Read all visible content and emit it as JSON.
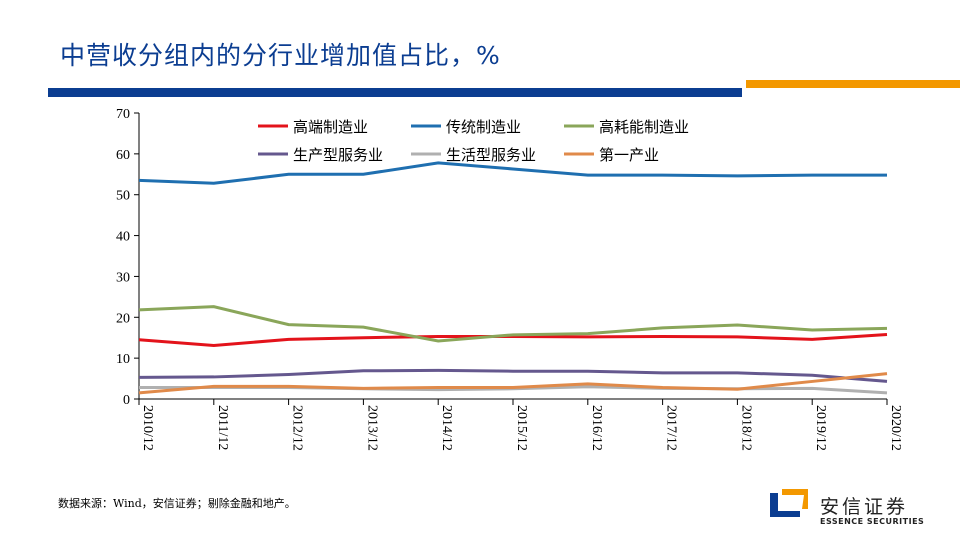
{
  "title": "中营收分组内的分行业增加值占比，%",
  "source": "数据来源：Wind，安信证券；剔除金融和地产。",
  "logo": {
    "cn": "安信证券",
    "en": "ESSENCE SECURITIES"
  },
  "colors": {
    "brand_blue": "#0b3d91",
    "brand_orange": "#f39800"
  },
  "chart_data": {
    "type": "line",
    "title": "",
    "xlabel": "",
    "ylabel": "",
    "ylim": [
      0,
      70
    ],
    "yticks": [
      0,
      10,
      20,
      30,
      40,
      50,
      60,
      70
    ],
    "categories": [
      "2010/12",
      "2011/12",
      "2012/12",
      "2013/12",
      "2014/12",
      "2015/12",
      "2016/12",
      "2017/12",
      "2018/12",
      "2019/12",
      "2020/12"
    ],
    "legend_position": "top",
    "grid": false,
    "series": [
      {
        "name": "高端制造业",
        "color": "#e3131b",
        "values": [
          14.5,
          13.1,
          14.6,
          15.0,
          15.3,
          15.3,
          15.2,
          15.3,
          15.2,
          14.6,
          15.8
        ]
      },
      {
        "name": "传统制造业",
        "color": "#1f6fb0",
        "values": [
          53.5,
          52.8,
          55.0,
          55.0,
          57.8,
          56.3,
          54.8,
          54.8,
          54.6,
          54.8,
          54.8
        ]
      },
      {
        "name": "高耗能制造业",
        "color": "#8aa65a",
        "values": [
          21.8,
          22.6,
          18.2,
          17.6,
          14.2,
          15.7,
          16.0,
          17.4,
          18.1,
          16.9,
          17.3
        ]
      },
      {
        "name": "生产型服务业",
        "color": "#65588e",
        "values": [
          5.3,
          5.4,
          6.0,
          6.9,
          7.0,
          6.8,
          6.8,
          6.4,
          6.4,
          5.8,
          4.3
        ]
      },
      {
        "name": "生活型服务业",
        "color": "#b0b0b0",
        "values": [
          2.8,
          2.8,
          2.8,
          2.5,
          2.3,
          2.5,
          3.0,
          2.6,
          2.5,
          2.6,
          1.5
        ]
      },
      {
        "name": "第一产业",
        "color": "#e08a4a",
        "values": [
          1.5,
          3.1,
          3.1,
          2.6,
          2.8,
          2.8,
          3.7,
          2.8,
          2.4,
          4.3,
          6.2
        ]
      }
    ]
  }
}
